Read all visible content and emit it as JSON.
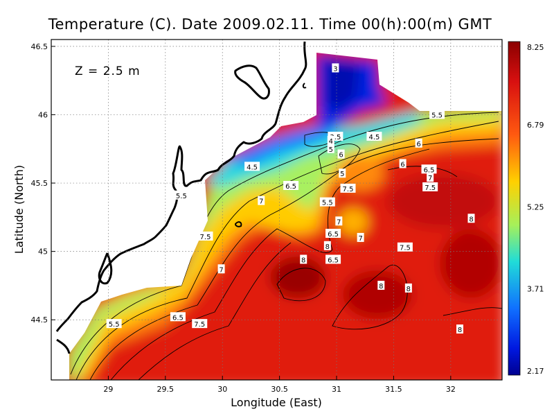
{
  "title": "Temperature (C). Date 2009.02.11. Time 00(h):00(m) GMT",
  "depth_label": "Z = 2.5 m",
  "x_axis_label": "Longitude (East)",
  "y_axis_label": "Latitude (North)",
  "lon_range": [
    28.5,
    32.45
  ],
  "lat_range": [
    44.06,
    46.55
  ],
  "x_ticks": [
    "29",
    "29.5",
    "30",
    "30.5",
    "31",
    "31.5",
    "32"
  ],
  "y_ticks": [
    "44.5",
    "45",
    "45.5",
    "46",
    "46.5"
  ],
  "colorbar": {
    "range": [
      2.17,
      8.25
    ],
    "tick_labels": [
      "8.25",
      "6.79",
      "5.25",
      "3.71",
      "2.17"
    ],
    "colors": [
      "#8b0000",
      "#e01a10",
      "#ff8000",
      "#ffd500",
      "#a0f060",
      "#20d8e0",
      "#1060ff",
      "#000090"
    ]
  },
  "contour_labels": [
    {
      "text": "3",
      "lon": 30.99,
      "lat": 46.34
    },
    {
      "text": "3.5",
      "lon": 30.99,
      "lat": 45.84
    },
    {
      "text": "4",
      "lon": 30.95,
      "lat": 45.81
    },
    {
      "text": "5",
      "lon": 30.95,
      "lat": 45.75
    },
    {
      "text": "6",
      "lon": 31.04,
      "lat": 45.71
    },
    {
      "text": "4.5",
      "lon": 31.33,
      "lat": 45.84
    },
    {
      "text": "5.5",
      "lon": 31.88,
      "lat": 46.0
    },
    {
      "text": "6",
      "lon": 31.72,
      "lat": 45.79
    },
    {
      "text": "4.5",
      "lon": 30.26,
      "lat": 45.62
    },
    {
      "text": "5",
      "lon": 31.05,
      "lat": 45.57
    },
    {
      "text": "6",
      "lon": 31.58,
      "lat": 45.64
    },
    {
      "text": "6.5",
      "lon": 31.81,
      "lat": 45.6
    },
    {
      "text": "7",
      "lon": 31.82,
      "lat": 45.54
    },
    {
      "text": "6.5",
      "lon": 30.6,
      "lat": 45.48
    },
    {
      "text": "7.5",
      "lon": 31.1,
      "lat": 45.46
    },
    {
      "text": "7.5",
      "lon": 31.82,
      "lat": 45.47
    },
    {
      "text": "5.5",
      "lon": 29.64,
      "lat": 45.41
    },
    {
      "text": "7",
      "lon": 30.34,
      "lat": 45.37
    },
    {
      "text": "5.5",
      "lon": 30.92,
      "lat": 45.36
    },
    {
      "text": "7",
      "lon": 31.02,
      "lat": 45.22
    },
    {
      "text": "8",
      "lon": 32.18,
      "lat": 45.24
    },
    {
      "text": "7.5",
      "lon": 29.85,
      "lat": 45.11
    },
    {
      "text": "6.5",
      "lon": 30.97,
      "lat": 45.13
    },
    {
      "text": "7",
      "lon": 31.21,
      "lat": 45.1
    },
    {
      "text": "8",
      "lon": 30.92,
      "lat": 45.04
    },
    {
      "text": "7.5",
      "lon": 31.6,
      "lat": 45.03
    },
    {
      "text": "8",
      "lon": 30.71,
      "lat": 44.94
    },
    {
      "text": "6.5",
      "lon": 30.97,
      "lat": 44.94
    },
    {
      "text": "7",
      "lon": 29.99,
      "lat": 44.87
    },
    {
      "text": "8",
      "lon": 31.39,
      "lat": 44.75
    },
    {
      "text": "8",
      "lon": 31.63,
      "lat": 44.73
    },
    {
      "text": "6.5",
      "lon": 29.61,
      "lat": 44.52
    },
    {
      "text": "7.5",
      "lon": 29.8,
      "lat": 44.47
    },
    {
      "text": "5.5",
      "lon": 29.05,
      "lat": 44.47
    },
    {
      "text": "8",
      "lon": 32.08,
      "lat": 44.43
    }
  ]
}
